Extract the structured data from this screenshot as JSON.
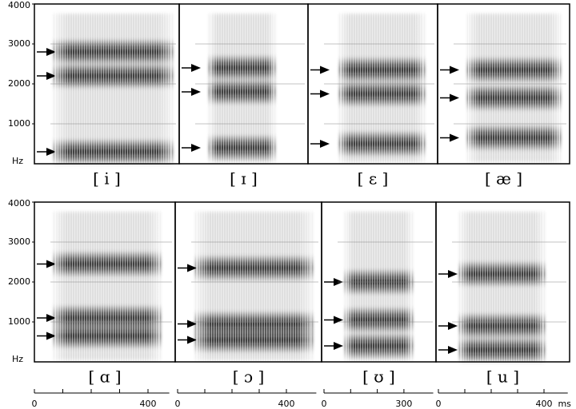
{
  "chart_data": [
    {
      "type": "spectrogram",
      "label": "[ i ]",
      "formants": [
        2800,
        2200,
        300
      ],
      "ylim": [
        0,
        4000
      ],
      "yticks": [
        1000,
        2000,
        3000,
        4000
      ],
      "ylabel": "Hz"
    },
    {
      "type": "spectrogram",
      "label": "[ ɪ ]",
      "formants": [
        2400,
        1800,
        400
      ],
      "ylim": [
        0,
        4000
      ]
    },
    {
      "type": "spectrogram",
      "label": "[ ɛ ]",
      "formants": [
        2350,
        1750,
        500
      ],
      "ylim": [
        0,
        4000
      ]
    },
    {
      "type": "spectrogram",
      "label": "[ æ ]",
      "formants": [
        2350,
        1650,
        650
      ],
      "ylim": [
        0,
        4000
      ]
    },
    {
      "type": "spectrogram",
      "label": "[ ɑ ]",
      "formants": [
        2450,
        1100,
        650
      ],
      "ylim": [
        0,
        4000
      ],
      "yticks": [
        1000,
        2000,
        3000,
        4000
      ],
      "ylabel": "Hz",
      "xlim": [
        0,
        475
      ],
      "xticks": [
        0,
        400
      ],
      "xminor": [
        100,
        200,
        300
      ]
    },
    {
      "type": "spectrogram",
      "label": "[ ɔ ]",
      "formants": [
        2350,
        950,
        550
      ],
      "ylim": [
        0,
        4000
      ],
      "xlim": [
        0,
        510
      ],
      "xticks": [
        0,
        400
      ],
      "xminor": [
        100,
        200,
        300
      ]
    },
    {
      "type": "spectrogram",
      "label": "[ ʊ ]",
      "formants": [
        2000,
        1050,
        400
      ],
      "ylim": [
        0,
        4000
      ],
      "xlim": [
        0,
        410
      ],
      "xticks": [
        0,
        300
      ],
      "xminor": [
        100,
        200
      ]
    },
    {
      "type": "spectrogram",
      "label": "[ u ]",
      "formants": [
        2200,
        900,
        300
      ],
      "ylim": [
        0,
        4000
      ],
      "xlim": [
        0,
        490
      ],
      "xticks": [
        0,
        400
      ],
      "xminor": [
        100,
        200,
        300
      ],
      "xunit": "ms"
    }
  ]
}
